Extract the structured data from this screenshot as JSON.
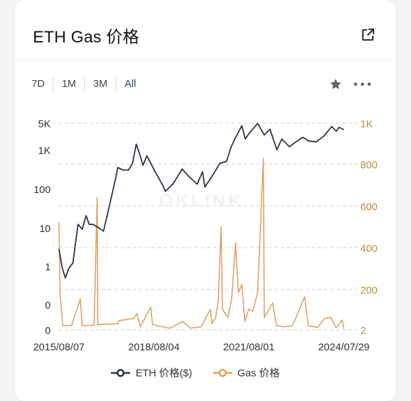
{
  "header": {
    "title": "ETH Gas 价格"
  },
  "ranges": [
    {
      "label": "7D",
      "active": false
    },
    {
      "label": "1M",
      "active": false
    },
    {
      "label": "3M",
      "active": false
    },
    {
      "label": "All",
      "active": true
    }
  ],
  "colors": {
    "eth": "#2b2e4a",
    "gas": "#e0a060",
    "gas_axis": "#c48a3a",
    "grid": "#cfcfcf",
    "active_range": "#2c3a8c"
  },
  "icons": {
    "external": "external-link-icon",
    "star": "star-icon",
    "more": "more-icon"
  },
  "chart_data": {
    "type": "line",
    "title": "",
    "watermark": "OKLINK",
    "x_ticks": [
      "2015/08/07",
      "2018/08/04",
      "2021/08/01",
      "2024/07/29"
    ],
    "y_left_ticks": [
      "5K",
      "1K",
      "100",
      "10",
      "1",
      "0",
      "0"
    ],
    "y_right_ticks": [
      "1K",
      "800",
      "600",
      "400",
      "200",
      "2"
    ],
    "grid": true,
    "legend_position": "bottom",
    "series": [
      {
        "name": "ETH 价格($)",
        "axis": "left",
        "scale": "log",
        "points": [
          [
            "2015/08/07",
            2.8
          ],
          [
            "2015/09/15",
            0.9
          ],
          [
            "2015/10/20",
            0.5
          ],
          [
            "2015/12/01",
            0.9
          ],
          [
            "2016/01/15",
            1.2
          ],
          [
            "2016/02/20",
            5
          ],
          [
            "2016/03/15",
            12
          ],
          [
            "2016/05/01",
            9
          ],
          [
            "2016/06/15",
            20
          ],
          [
            "2016/07/20",
            12
          ],
          [
            "2016/09/01",
            12
          ],
          [
            "2016/11/01",
            10
          ],
          [
            "2017/01/01",
            8
          ],
          [
            "2017/03/15",
            40
          ],
          [
            "2017/05/20",
            180
          ],
          [
            "2017/06/15",
            350
          ],
          [
            "2017/08/15",
            300
          ],
          [
            "2017/10/15",
            300
          ],
          [
            "2017/12/01",
            450
          ],
          [
            "2018/01/13",
            1400
          ],
          [
            "2018/02/15",
            850
          ],
          [
            "2018/04/01",
            400
          ],
          [
            "2018/05/15",
            700
          ],
          [
            "2018/08/15",
            280
          ],
          [
            "2018/11/15",
            120
          ],
          [
            "2018/12/15",
            85
          ],
          [
            "2019/03/15",
            135
          ],
          [
            "2019/06/25",
            320
          ],
          [
            "2019/09/15",
            200
          ],
          [
            "2019/12/15",
            130
          ],
          [
            "2020/02/15",
            270
          ],
          [
            "2020/03/13",
            110
          ],
          [
            "2020/06/15",
            230
          ],
          [
            "2020/09/01",
            450
          ],
          [
            "2020/11/15",
            500
          ],
          [
            "2021/01/10",
            1200
          ],
          [
            "2021/02/20",
            1900
          ],
          [
            "2021/05/12",
            4200
          ],
          [
            "2021/06/20",
            1900
          ],
          [
            "2021/08/01",
            2600
          ],
          [
            "2021/11/10",
            4800
          ],
          [
            "2022/01/25",
            2400
          ],
          [
            "2022/04/01",
            3400
          ],
          [
            "2022/06/18",
            1000
          ],
          [
            "2022/08/15",
            1900
          ],
          [
            "2022/11/10",
            1200
          ],
          [
            "2023/01/15",
            1550
          ],
          [
            "2023/04/15",
            2100
          ],
          [
            "2023/06/15",
            1700
          ],
          [
            "2023/09/15",
            1600
          ],
          [
            "2023/12/15",
            2300
          ],
          [
            "2024/03/12",
            4000
          ],
          [
            "2024/05/01",
            3000
          ],
          [
            "2024/06/05",
            3800
          ],
          [
            "2024/07/29",
            3300
          ]
        ]
      },
      {
        "name": "Gas 价格",
        "axis": "right",
        "scale": "linear",
        "points": [
          [
            "2015/08/07",
            520
          ],
          [
            "2015/08/20",
            180
          ],
          [
            "2015/09/20",
            20
          ],
          [
            "2016/01/01",
            22
          ],
          [
            "2016/04/10",
            150
          ],
          [
            "2016/05/01",
            20
          ],
          [
            "2016/09/15",
            22
          ],
          [
            "2016/10/20",
            640
          ],
          [
            "2016/10/28",
            25
          ],
          [
            "2017/06/15",
            30
          ],
          [
            "2017/07/01",
            45
          ],
          [
            "2017/12/15",
            55
          ],
          [
            "2018/01/20",
            80
          ],
          [
            "2018/03/01",
            15
          ],
          [
            "2018/06/28",
            110
          ],
          [
            "2018/07/20",
            25
          ],
          [
            "2019/02/01",
            8
          ],
          [
            "2019/07/01",
            40
          ],
          [
            "2019/10/01",
            8
          ],
          [
            "2020/02/01",
            15
          ],
          [
            "2020/05/15",
            100
          ],
          [
            "2020/06/01",
            30
          ],
          [
            "2020/07/15",
            60
          ],
          [
            "2020/08/15",
            150
          ],
          [
            "2020/09/15",
            500
          ],
          [
            "2020/10/01",
            100
          ],
          [
            "2020/12/01",
            60
          ],
          [
            "2021/01/15",
            150
          ],
          [
            "2021/03/01",
            420
          ],
          [
            "2021/04/01",
            180
          ],
          [
            "2021/05/12",
            220
          ],
          [
            "2021/06/15",
            40
          ],
          [
            "2021/08/01",
            100
          ],
          [
            "2021/09/15",
            90
          ],
          [
            "2021/11/10",
            180
          ],
          [
            "2022/01/15",
            830
          ],
          [
            "2022/01/25",
            60
          ],
          [
            "2022/05/01",
            130
          ],
          [
            "2022/06/15",
            20
          ],
          [
            "2022/09/15",
            15
          ],
          [
            "2022/12/15",
            20
          ],
          [
            "2023/05/05",
            160
          ],
          [
            "2023/06/15",
            20
          ],
          [
            "2023/10/01",
            12
          ],
          [
            "2023/12/20",
            55
          ],
          [
            "2024/03/01",
            60
          ],
          [
            "2024/05/01",
            10
          ],
          [
            "2024/07/10",
            48
          ],
          [
            "2024/07/29",
            4
          ]
        ]
      }
    ]
  },
  "legend": [
    {
      "label": "ETH 价格($)",
      "series": "eth"
    },
    {
      "label": "Gas 价格",
      "series": "gas"
    }
  ]
}
